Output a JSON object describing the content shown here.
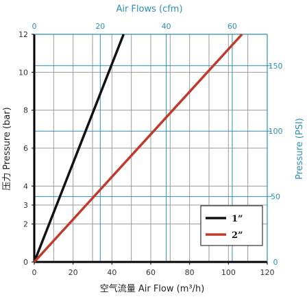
{
  "chart_data": {
    "type": "line",
    "title": "",
    "xlabel": "空气流量 Air Flow (m³/h)",
    "ylabel": "压力 Pressure (bar)",
    "x2label": "Air Flows (cfm)",
    "y2label": "Pressure (PSI)",
    "xlim": [
      0,
      120
    ],
    "ylim": [
      0,
      12
    ],
    "x2lim": [
      0,
      70.6
    ],
    "y2lim": [
      0,
      174
    ],
    "x_ticks": [
      0,
      20,
      40,
      60,
      80,
      100,
      120
    ],
    "y_ticks": [
      0,
      2,
      3,
      4,
      6,
      8,
      10,
      12
    ],
    "x2_ticks": [
      0,
      20,
      40,
      60
    ],
    "y2_ticks": [
      0,
      50,
      100,
      150
    ],
    "grid": true,
    "legend_position": "bottom-right",
    "series": [
      {
        "name": "1”",
        "color": "#111111",
        "x": [
          0,
          46
        ],
        "y": [
          0,
          12
        ]
      },
      {
        "name": "2”",
        "color": "#c0392b",
        "x": [
          0,
          107
        ],
        "y": [
          0,
          12
        ]
      }
    ]
  }
}
